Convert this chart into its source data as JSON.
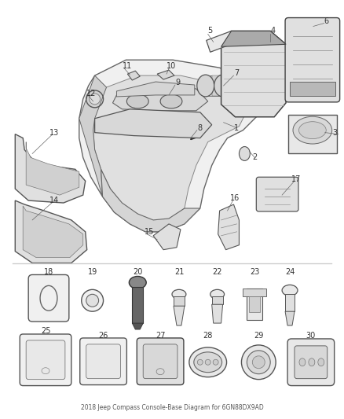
{
  "title": "2018 Jeep Compass Console-Base Diagram for 6GN88DX9AD",
  "background_color": "#ffffff",
  "fig_width": 4.38,
  "fig_height": 5.33,
  "dpi": 100,
  "label_fontsize": 7,
  "label_color": "#333333",
  "line_color": "#555555",
  "part_color_light": "#e8e8e8",
  "part_color_mid": "#cccccc",
  "part_color_dark": "#aaaaaa"
}
